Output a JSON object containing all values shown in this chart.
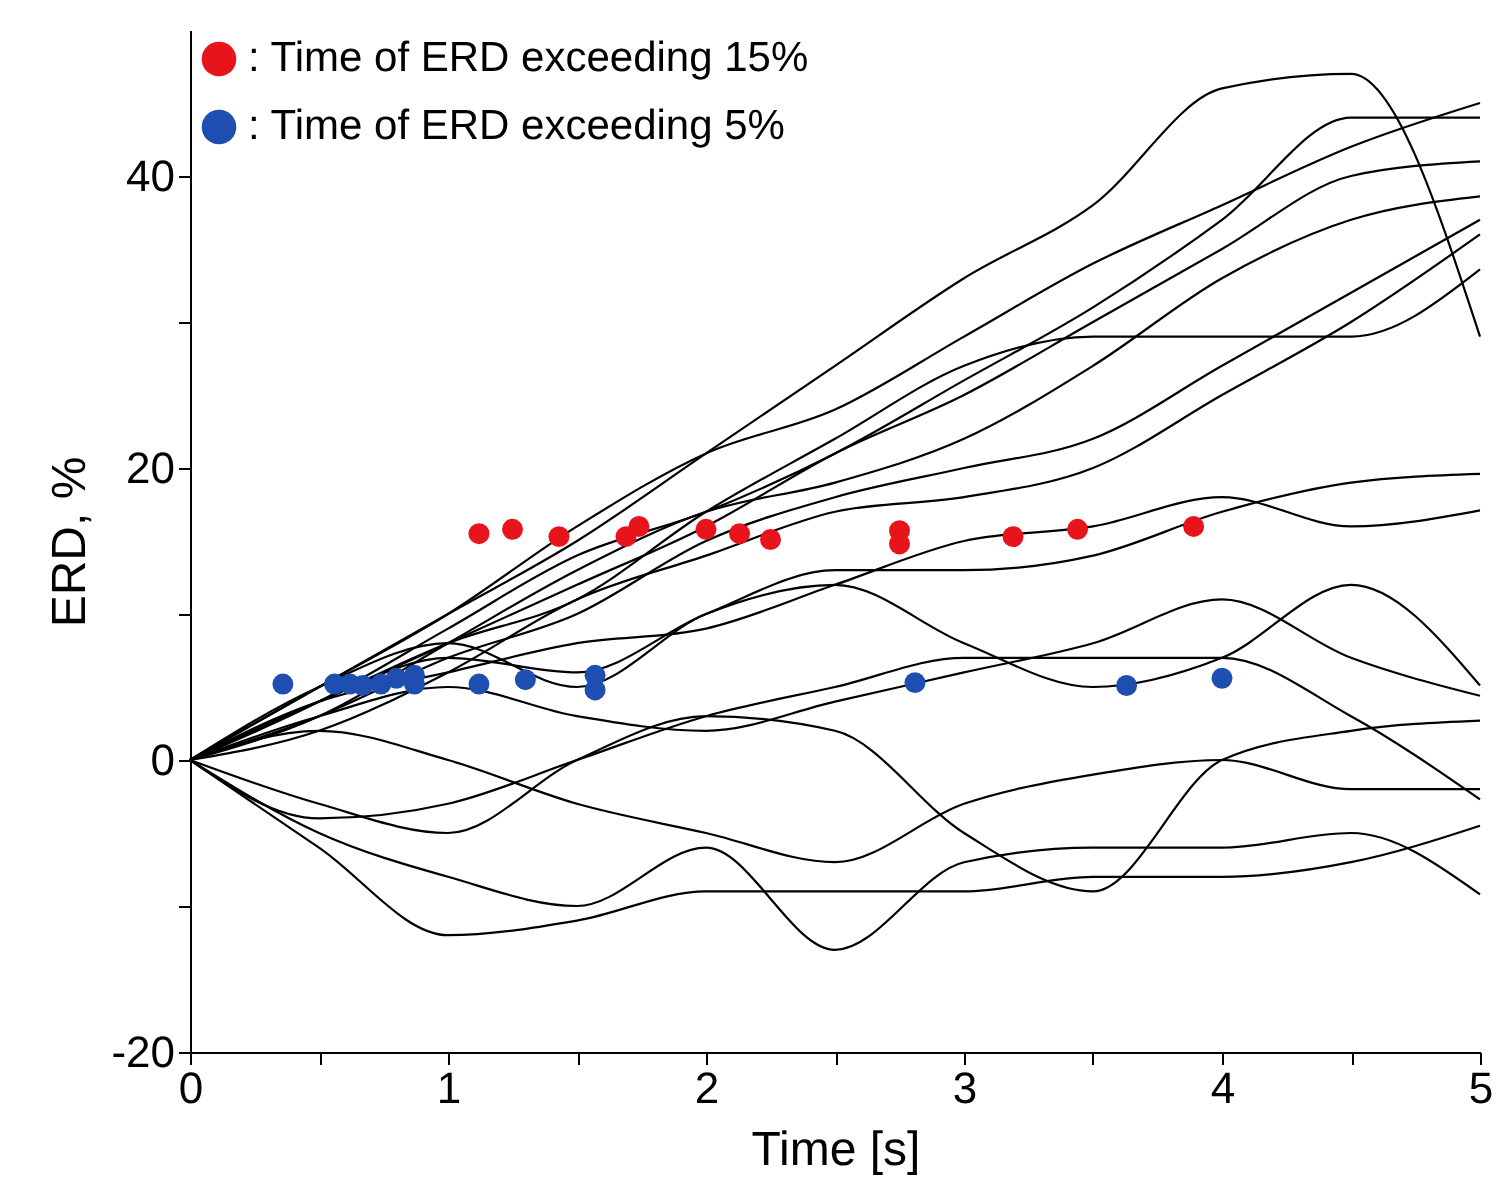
{
  "chart_data": {
    "type": "line",
    "xlabel": "Time [s]",
    "ylabel": "ERD, %",
    "xlim": [
      0,
      5
    ],
    "ylim": [
      -20,
      50
    ],
    "xticks": [
      0,
      {
        "value": 0.5,
        "label": null
      },
      1,
      {
        "value": 1.5,
        "label": null
      },
      2,
      {
        "value": 2.5,
        "label": null
      },
      3,
      {
        "value": 3.5,
        "label": null
      },
      4,
      {
        "value": 4.5,
        "label": null
      },
      5
    ],
    "yticks": [
      -20,
      {
        "value": -10,
        "label": null
      },
      0,
      {
        "value": 10,
        "label": null
      },
      20,
      {
        "value": 30,
        "label": null
      },
      40
    ],
    "x": [
      0,
      0.5,
      1,
      1.5,
      2,
      2.5,
      3,
      3.5,
      4,
      4.5,
      5
    ],
    "legend": "top left",
    "series": [
      {
        "color": "#000000",
        "values": [
          0,
          5,
          10,
          15,
          21,
          27,
          33,
          38,
          46,
          47,
          29
        ]
      },
      {
        "color": "#000000",
        "values": [
          0,
          5,
          10,
          16,
          21,
          24,
          29,
          34,
          38,
          42,
          45
        ]
      },
      {
        "color": "#000000",
        "values": [
          0,
          4,
          9,
          14,
          17,
          21,
          26,
          31,
          37,
          44,
          44
        ]
      },
      {
        "color": "#000000",
        "values": [
          0,
          4,
          8,
          12,
          16,
          21,
          25,
          30,
          35,
          40,
          41
        ]
      },
      {
        "color": "#000000",
        "values": [
          0,
          3,
          8,
          13,
          17,
          19,
          22,
          27,
          33,
          37,
          38.6
        ]
      },
      {
        "color": "#000000",
        "values": [
          0,
          3,
          7,
          10,
          15,
          18,
          20,
          22,
          27,
          32,
          37
        ]
      },
      {
        "color": "#000000",
        "values": [
          0,
          2,
          6,
          11,
          14,
          17,
          18,
          20,
          25,
          30,
          36
        ]
      },
      {
        "color": "#000000",
        "values": [
          0,
          4,
          8,
          11,
          17,
          22,
          27,
          29,
          29,
          29,
          33.6
        ]
      },
      {
        "color": "#000000",
        "values": [
          0,
          4,
          7,
          6,
          10,
          13,
          13,
          14,
          17,
          19,
          19.6
        ]
      },
      {
        "color": "#000000",
        "values": [
          0,
          4,
          6,
          8,
          9,
          12,
          15,
          16,
          18,
          16,
          17.1
        ]
      },
      {
        "color": "#000000",
        "values": [
          0,
          5,
          8,
          5,
          10,
          12,
          8,
          5,
          7,
          12,
          5.1
        ]
      },
      {
        "color": "#000000",
        "values": [
          0,
          3,
          5,
          3,
          2,
          4,
          6,
          8,
          11,
          7,
          4.4
        ]
      },
      {
        "color": "#000000",
        "values": [
          0,
          -3,
          -5,
          0,
          3,
          2,
          -5,
          -9,
          0,
          2,
          2.7
        ]
      },
      {
        "color": "#000000",
        "values": [
          0,
          -5,
          -8,
          -10,
          -6,
          -13,
          -7,
          -6,
          -6,
          -5,
          -9.2
        ]
      },
      {
        "color": "#000000",
        "values": [
          0,
          -6,
          -12,
          -11,
          -9,
          -9,
          -9,
          -8,
          -8,
          -7,
          -4.5
        ]
      },
      {
        "color": "#000000",
        "values": [
          0,
          2,
          0,
          -3,
          -5,
          -7,
          -3,
          -1,
          0,
          -2,
          -2
        ]
      },
      {
        "color": "#000000",
        "values": [
          0,
          -4,
          -3,
          0,
          3,
          5,
          7,
          7,
          7,
          3,
          -2.7
        ]
      },
      {
        "type": "scatter",
        "name": ": Time of ERD exceeding 15%",
        "color": "#e8141c",
        "marker": "circle",
        "x": [
          1.12,
          1.25,
          1.43,
          1.69,
          1.74,
          2.0,
          2.13,
          2.25,
          2.75,
          2.75,
          3.19,
          3.44,
          3.89
        ],
        "values": [
          15.5,
          15.8,
          15.3,
          15.3,
          16.0,
          15.8,
          15.5,
          15.1,
          14.8,
          15.7,
          15.3,
          15.8,
          16.0
        ]
      },
      {
        "type": "scatter",
        "name": ": Time of ERD exceeding 5%",
        "color": "#1e4fb0",
        "marker": "circle",
        "x": [
          0.36,
          0.56,
          0.62,
          0.67,
          0.74,
          0.8,
          0.87,
          0.87,
          1.12,
          1.3,
          1.57,
          1.57,
          2.81,
          3.63,
          4.0
        ],
        "values": [
          5.2,
          5.2,
          5.2,
          5.1,
          5.2,
          5.6,
          5.2,
          5.8,
          5.2,
          5.5,
          5.8,
          4.8,
          5.3,
          5.1,
          5.6
        ]
      }
    ]
  }
}
